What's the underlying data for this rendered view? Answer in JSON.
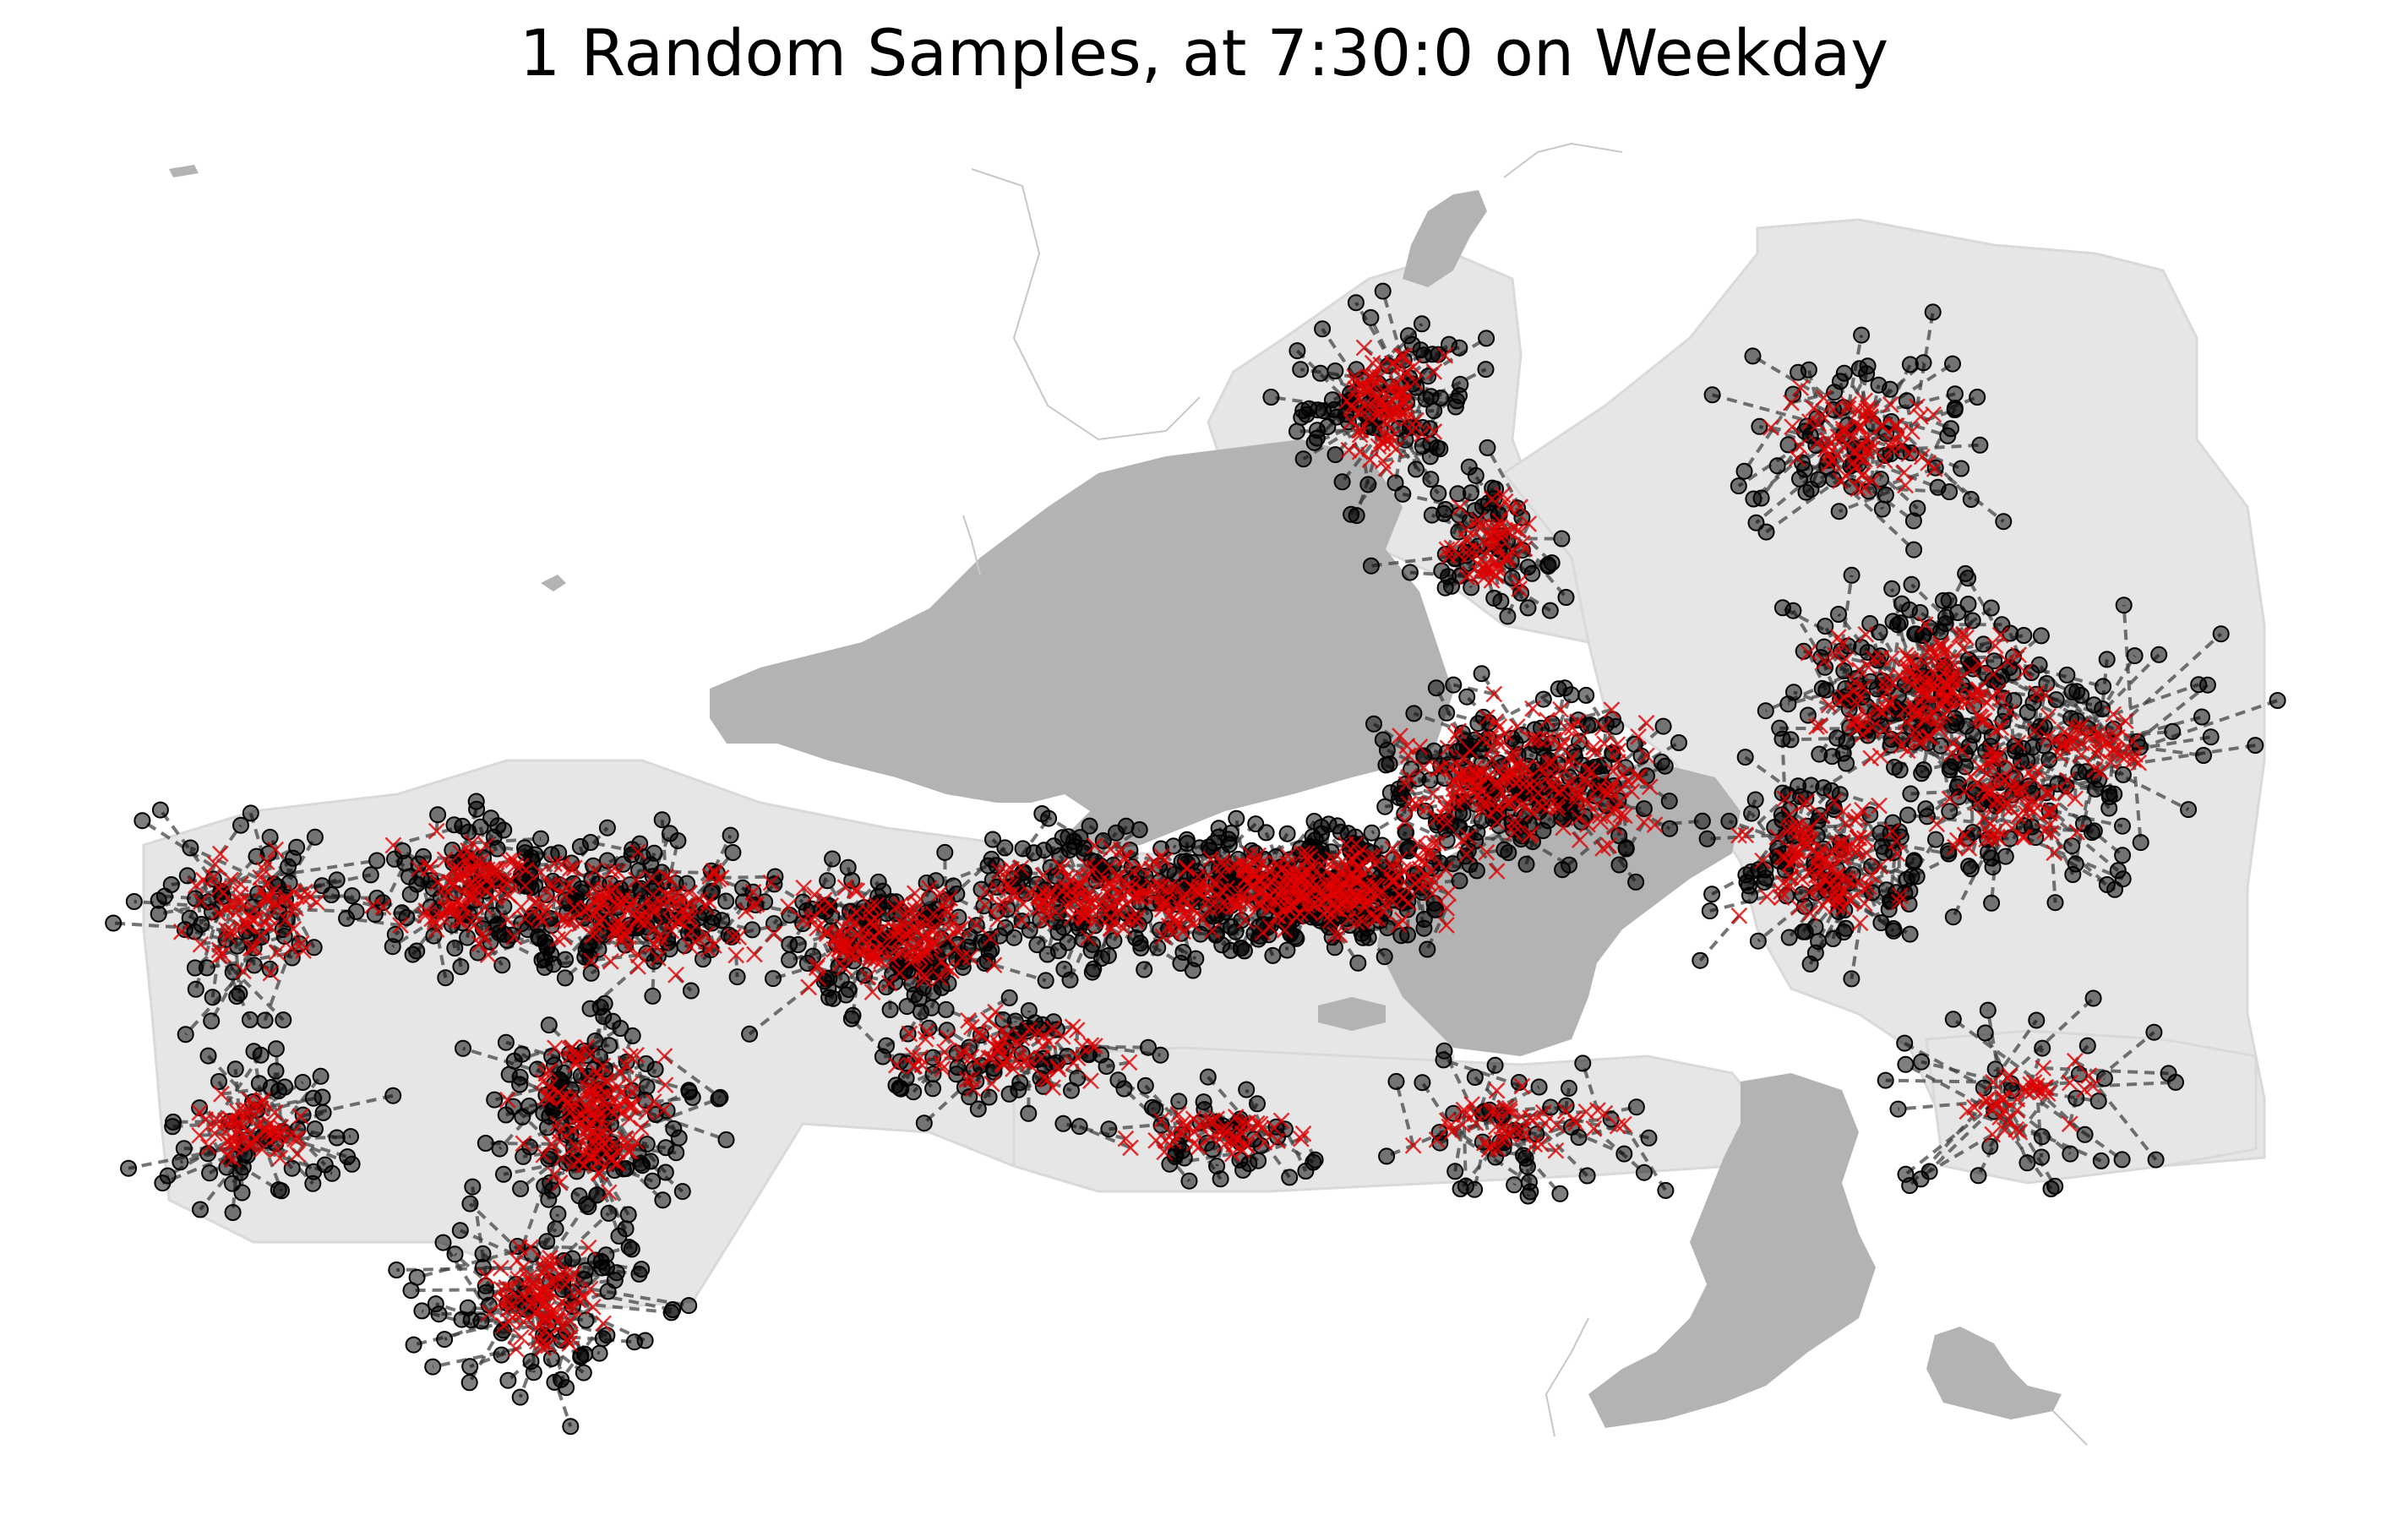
{
  "figure": {
    "title": "1 Random Samples, at 7:30:0 on Weekday"
  },
  "colors": {
    "background": "#ffffff",
    "land": "#e6e6e6",
    "land_edge": "#d4d4d4",
    "water": "#b3b3b3",
    "stop_marker": "#000000",
    "sample_marker": "#e00000",
    "connector": "#3a3a3a"
  },
  "legend": null
}
